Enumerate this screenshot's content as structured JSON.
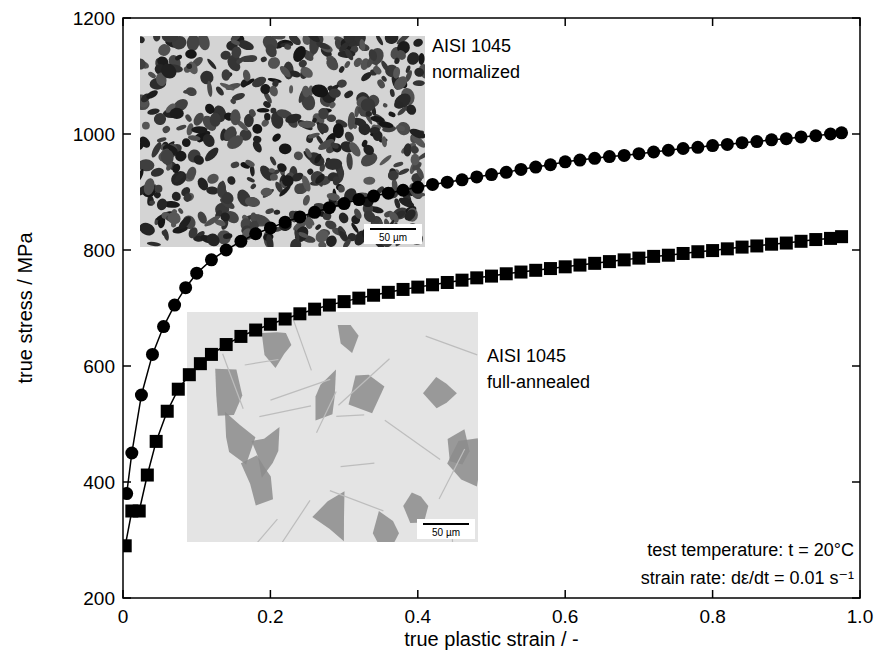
{
  "chart_data": {
    "type": "line",
    "x_label": "true plastic strain / -",
    "y_label": "true stress / MPa",
    "xlim": [
      0,
      1
    ],
    "ylim": [
      200,
      1200
    ],
    "xticks": [
      0,
      0.2,
      0.4,
      0.6,
      0.8,
      {
        "value": 1,
        "label": "1.0"
      }
    ],
    "yticks": [
      200,
      400,
      600,
      800,
      1000,
      1200
    ],
    "grid": false,
    "series": [
      {
        "name": "AISI 1045 normalized",
        "color": "#000000",
        "marker": "circle",
        "line_style": "solid",
        "x": [
          0.005,
          0.012,
          0.025,
          0.04,
          0.055,
          0.07,
          0.085,
          0.1,
          0.12,
          0.14,
          0.16,
          0.18,
          0.2,
          0.22,
          0.24,
          0.26,
          0.28,
          0.3,
          0.32,
          0.34,
          0.36,
          0.38,
          0.4,
          0.42,
          0.44,
          0.46,
          0.48,
          0.5,
          0.52,
          0.54,
          0.56,
          0.58,
          0.6,
          0.62,
          0.64,
          0.66,
          0.68,
          0.7,
          0.72,
          0.74,
          0.76,
          0.78,
          0.8,
          0.82,
          0.84,
          0.86,
          0.88,
          0.9,
          0.92,
          0.94,
          0.96,
          0.975
        ],
        "values": [
          380,
          450,
          550,
          620,
          668,
          705,
          735,
          760,
          783,
          800,
          815,
          828,
          838,
          848,
          857,
          865,
          873,
          880,
          887,
          893,
          898,
          903,
          908,
          913,
          917,
          921,
          926,
          930,
          934,
          939,
          943,
          947,
          952,
          955,
          958,
          961,
          963,
          966,
          969,
          972,
          975,
          977,
          980,
          982,
          985,
          987,
          990,
          992,
          995,
          997,
          1000,
          1002
        ]
      },
      {
        "name": "AISI 1045 full-annealed",
        "color": "#000000",
        "marker": "square",
        "line_style": "solid",
        "x": [
          0.003,
          0.012,
          0.022,
          0.033,
          0.045,
          0.06,
          0.075,
          0.09,
          0.105,
          0.12,
          0.14,
          0.16,
          0.18,
          0.2,
          0.22,
          0.24,
          0.26,
          0.28,
          0.3,
          0.32,
          0.34,
          0.36,
          0.38,
          0.4,
          0.42,
          0.44,
          0.46,
          0.48,
          0.5,
          0.52,
          0.54,
          0.56,
          0.58,
          0.6,
          0.62,
          0.64,
          0.66,
          0.68,
          0.7,
          0.72,
          0.74,
          0.76,
          0.78,
          0.8,
          0.82,
          0.84,
          0.86,
          0.88,
          0.9,
          0.92,
          0.94,
          0.96,
          0.975
        ],
        "values": [
          290,
          350,
          350,
          412,
          470,
          522,
          560,
          585,
          604,
          620,
          637,
          651,
          662,
          672,
          681,
          690,
          698,
          705,
          711,
          717,
          722,
          727,
          732,
          736,
          740,
          744,
          748,
          752,
          755,
          759,
          762,
          765,
          768,
          771,
          774,
          777,
          780,
          783,
          786,
          789,
          791,
          794,
          797,
          799,
          802,
          805,
          807,
          810,
          812,
          815,
          818,
          820,
          823
        ]
      }
    ],
    "insets": [
      {
        "lines": [
          "AISI 1045",
          "normalized"
        ],
        "scale_bar": "50 µm"
      },
      {
        "lines": [
          "AISI 1045",
          "full-annealed"
        ],
        "scale_bar": "50 µm"
      }
    ],
    "annotations": [
      "test temperature: t = 20°C",
      "strain rate: dε/dt = 0.01 s⁻¹"
    ]
  }
}
